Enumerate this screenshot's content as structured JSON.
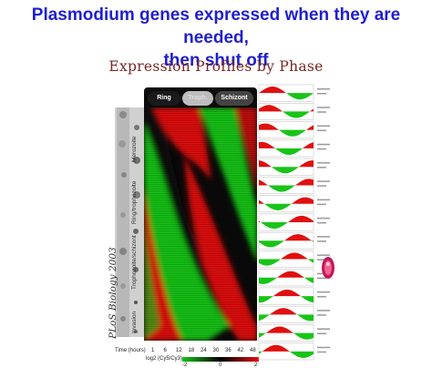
{
  "slide_title_line1": "Plasmodium genes expressed when they are needed,",
  "slide_title_line2": "then shut off",
  "figure_title": "Expression Profiles by Phase",
  "phases": [
    "Ring",
    "Troph.",
    "Schizont"
  ],
  "stages": [
    "Invasion",
    "Trophozoite/schizont",
    "Ring/trophozoite",
    "Merozoite"
  ],
  "citation": "PLoS Biology 2003",
  "time_label": "Time (hours)",
  "time_ticks": [
    "1",
    "6",
    "12",
    "18",
    "24",
    "30",
    "36",
    "42",
    "48"
  ],
  "ratio_label": "log2 (Cy5/Cy3)",
  "ratio_ticks": [
    "-2",
    "0",
    "2"
  ],
  "colors": {
    "red": "#e01010",
    "green": "#18c418",
    "title_blue": "#1f1fcf",
    "figure_title": "#7a2626"
  }
}
